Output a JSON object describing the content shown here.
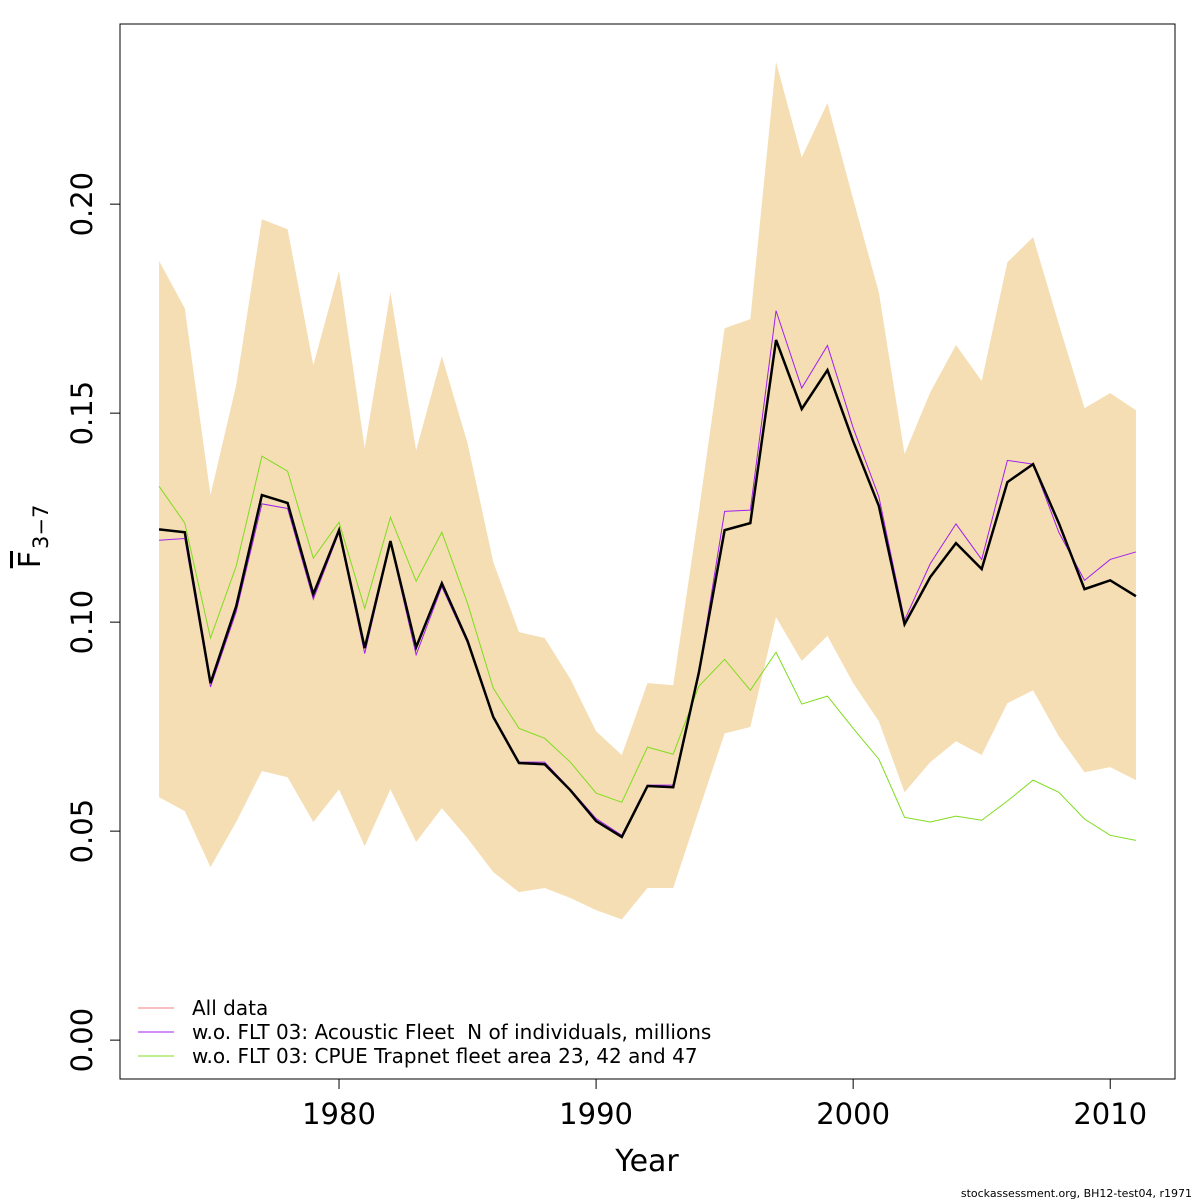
{
  "chart_data": {
    "type": "line",
    "xlabel": "Year",
    "ylabel": "F",
    "ylabel_sub": "3−7",
    "footer": "stockassessment.org, BH12-test04, r1971",
    "x": [
      1973,
      1974,
      1975,
      1976,
      1977,
      1978,
      1979,
      1980,
      1981,
      1982,
      1983,
      1984,
      1985,
      1986,
      1987,
      1988,
      1989,
      1990,
      1991,
      1992,
      1993,
      1994,
      1995,
      1996,
      1997,
      1998,
      1999,
      2000,
      2001,
      2002,
      2003,
      2004,
      2005,
      2006,
      2007,
      2008,
      2009,
      2010,
      2011
    ],
    "band": {
      "color": "#f5deb3",
      "upper": [
        0.1864,
        0.1751,
        0.1304,
        0.1567,
        0.1964,
        0.194,
        0.1615,
        0.184,
        0.1416,
        0.1789,
        0.1411,
        0.1636,
        0.1428,
        0.1144,
        0.0976,
        0.0962,
        0.0864,
        0.0739,
        0.0682,
        0.0854,
        0.0849,
        0.1266,
        0.1703,
        0.1725,
        0.234,
        0.2112,
        0.2242,
        0.2012,
        0.1789,
        0.1402,
        0.155,
        0.1663,
        0.1577,
        0.1861,
        0.1921,
        0.1713,
        0.1512,
        0.1548,
        0.1507
      ],
      "lower": [
        0.0581,
        0.0548,
        0.0414,
        0.0522,
        0.0644,
        0.0629,
        0.0522,
        0.06,
        0.0464,
        0.06,
        0.0474,
        0.0555,
        0.0483,
        0.0402,
        0.0354,
        0.0364,
        0.034,
        0.0311,
        0.0289,
        0.0364,
        0.0364,
        0.055,
        0.0734,
        0.0749,
        0.1012,
        0.0907,
        0.0967,
        0.0854,
        0.0763,
        0.0593,
        0.0665,
        0.0715,
        0.0682,
        0.0806,
        0.0837,
        0.0727,
        0.0641,
        0.0653,
        0.0622
      ]
    },
    "series": [
      {
        "name": "All data",
        "color": "#f08080",
        "line_color": "#000000",
        "values": [
          0.1222,
          0.1215,
          0.0854,
          0.1038,
          0.1304,
          0.1285,
          0.1067,
          0.122,
          0.0938,
          0.1194,
          0.094,
          0.1093,
          0.0955,
          0.0773,
          0.0663,
          0.066,
          0.0598,
          0.0524,
          0.0486,
          0.0608,
          0.0605,
          0.088,
          0.122,
          0.1237,
          0.1675,
          0.151,
          0.1603,
          0.1433,
          0.1278,
          0.0995,
          0.1108,
          0.1189,
          0.1127,
          0.1335,
          0.1378,
          0.1237,
          0.1079,
          0.11,
          0.1062
        ]
      },
      {
        "name": "w.o. FLT 03: Acoustic Fleet  N of individuals, millions",
        "color": "#a020f0",
        "values": [
          0.1196,
          0.12,
          0.0845,
          0.1025,
          0.1283,
          0.1272,
          0.1055,
          0.1215,
          0.0925,
          0.119,
          0.0922,
          0.1085,
          0.095,
          0.0775,
          0.0665,
          0.0665,
          0.06,
          0.053,
          0.049,
          0.061,
          0.061,
          0.088,
          0.1265,
          0.1268,
          0.1745,
          0.156,
          0.1662,
          0.1465,
          0.13,
          0.1005,
          0.114,
          0.1235,
          0.115,
          0.1387,
          0.1378,
          0.1215,
          0.11,
          0.115,
          0.1168
        ]
      },
      {
        "name": "w.o. FLT 03: CPUE Trapnet fleet area 23, 42 and 47",
        "color": "#7fdc1e",
        "values": [
          0.1325,
          0.1237,
          0.0962,
          0.1134,
          0.1397,
          0.1361,
          0.1153,
          0.1239,
          0.1033,
          0.1251,
          0.1098,
          0.1215,
          0.1045,
          0.0842,
          0.0746,
          0.0722,
          0.0665,
          0.0591,
          0.0569,
          0.0701,
          0.0684,
          0.0847,
          0.0911,
          0.0837,
          0.0928,
          0.0804,
          0.0823,
          0.0746,
          0.0672,
          0.0533,
          0.0522,
          0.0536,
          0.0526,
          0.0572,
          0.0622,
          0.0593,
          0.0529,
          0.049,
          0.0478
        ]
      }
    ],
    "xlim": [
      1971.48,
      2012.52
    ],
    "xticks": [
      1980,
      1990,
      2000,
      2010
    ],
    "ylim": [
      -0.0093,
      0.2431
    ],
    "yticks": [
      {
        "value": 0,
        "label": "0.00"
      },
      {
        "value": 0.05,
        "label": "0.05"
      },
      {
        "value": 0.1,
        "label": "0.10"
      },
      {
        "value": 0.15,
        "label": "0.15"
      },
      {
        "value": 0.2,
        "label": "0.20"
      }
    ],
    "legend": "bottom-left"
  }
}
